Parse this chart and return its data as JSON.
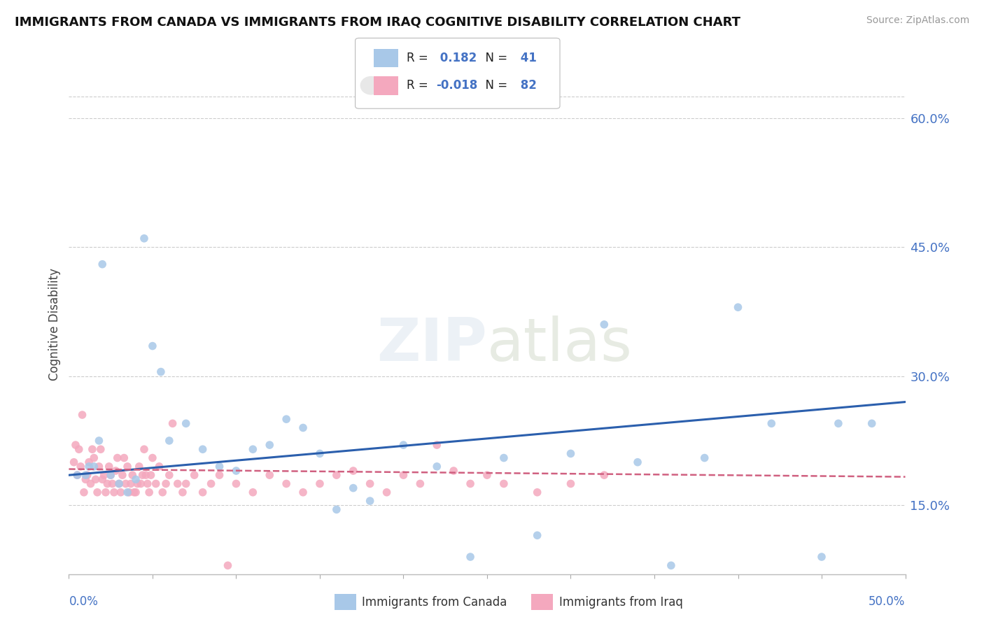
{
  "title": "IMMIGRANTS FROM CANADA VS IMMIGRANTS FROM IRAQ COGNITIVE DISABILITY CORRELATION CHART",
  "source": "Source: ZipAtlas.com",
  "ylabel": "Cognitive Disability",
  "y_ticks": [
    0.15,
    0.3,
    0.45,
    0.6
  ],
  "y_tick_labels": [
    "15.0%",
    "30.0%",
    "45.0%",
    "60.0%"
  ],
  "x_lim": [
    0.0,
    0.5
  ],
  "y_lim": [
    0.07,
    0.65
  ],
  "watermark": "ZIPatlas",
  "canada_color": "#a8c8e8",
  "iraq_color": "#f4a8be",
  "canada_line_color": "#2b5fad",
  "iraq_line_color": "#d06080",
  "canada_R": 0.182,
  "canada_N": 41,
  "iraq_R": -0.018,
  "iraq_N": 82,
  "canada_scatter_x": [
    0.005,
    0.01,
    0.012,
    0.015,
    0.018,
    0.02,
    0.025,
    0.03,
    0.035,
    0.04,
    0.045,
    0.05,
    0.055,
    0.06,
    0.07,
    0.08,
    0.09,
    0.1,
    0.11,
    0.12,
    0.13,
    0.14,
    0.15,
    0.16,
    0.17,
    0.18,
    0.2,
    0.22,
    0.24,
    0.26,
    0.28,
    0.3,
    0.32,
    0.34,
    0.36,
    0.38,
    0.4,
    0.42,
    0.45,
    0.46,
    0.48
  ],
  "canada_scatter_y": [
    0.185,
    0.185,
    0.195,
    0.195,
    0.225,
    0.43,
    0.185,
    0.175,
    0.165,
    0.18,
    0.46,
    0.335,
    0.305,
    0.225,
    0.245,
    0.215,
    0.195,
    0.19,
    0.215,
    0.22,
    0.25,
    0.24,
    0.21,
    0.145,
    0.17,
    0.155,
    0.22,
    0.195,
    0.09,
    0.205,
    0.115,
    0.21,
    0.36,
    0.2,
    0.08,
    0.205,
    0.38,
    0.245,
    0.09,
    0.245,
    0.245
  ],
  "iraq_scatter_x": [
    0.003,
    0.004,
    0.005,
    0.006,
    0.007,
    0.008,
    0.009,
    0.01,
    0.011,
    0.012,
    0.013,
    0.014,
    0.015,
    0.016,
    0.017,
    0.018,
    0.019,
    0.02,
    0.021,
    0.022,
    0.023,
    0.024,
    0.025,
    0.026,
    0.027,
    0.028,
    0.029,
    0.03,
    0.031,
    0.032,
    0.033,
    0.034,
    0.035,
    0.036,
    0.037,
    0.038,
    0.039,
    0.04,
    0.041,
    0.042,
    0.043,
    0.044,
    0.045,
    0.046,
    0.047,
    0.048,
    0.049,
    0.05,
    0.052,
    0.054,
    0.056,
    0.058,
    0.06,
    0.062,
    0.065,
    0.068,
    0.07,
    0.075,
    0.08,
    0.085,
    0.09,
    0.095,
    0.1,
    0.11,
    0.12,
    0.13,
    0.14,
    0.15,
    0.16,
    0.17,
    0.18,
    0.19,
    0.2,
    0.21,
    0.22,
    0.23,
    0.24,
    0.25,
    0.26,
    0.28,
    0.3,
    0.32
  ],
  "iraq_scatter_y": [
    0.2,
    0.22,
    0.185,
    0.215,
    0.195,
    0.255,
    0.165,
    0.18,
    0.185,
    0.2,
    0.175,
    0.215,
    0.205,
    0.18,
    0.165,
    0.195,
    0.215,
    0.18,
    0.185,
    0.165,
    0.175,
    0.195,
    0.185,
    0.175,
    0.165,
    0.19,
    0.205,
    0.175,
    0.165,
    0.185,
    0.205,
    0.175,
    0.195,
    0.165,
    0.175,
    0.185,
    0.165,
    0.165,
    0.175,
    0.195,
    0.175,
    0.185,
    0.215,
    0.185,
    0.175,
    0.165,
    0.185,
    0.205,
    0.175,
    0.195,
    0.165,
    0.175,
    0.185,
    0.245,
    0.175,
    0.165,
    0.175,
    0.185,
    0.165,
    0.175,
    0.185,
    0.08,
    0.175,
    0.165,
    0.185,
    0.175,
    0.165,
    0.175,
    0.185,
    0.19,
    0.175,
    0.165,
    0.185,
    0.175,
    0.22,
    0.19,
    0.175,
    0.185,
    0.175,
    0.165,
    0.175,
    0.185
  ],
  "canada_trend_x": [
    0.0,
    0.5
  ],
  "canada_trend_y": [
    0.185,
    0.27
  ],
  "iraq_trend_x": [
    0.0,
    0.5
  ],
  "iraq_trend_y": [
    0.192,
    0.183
  ]
}
